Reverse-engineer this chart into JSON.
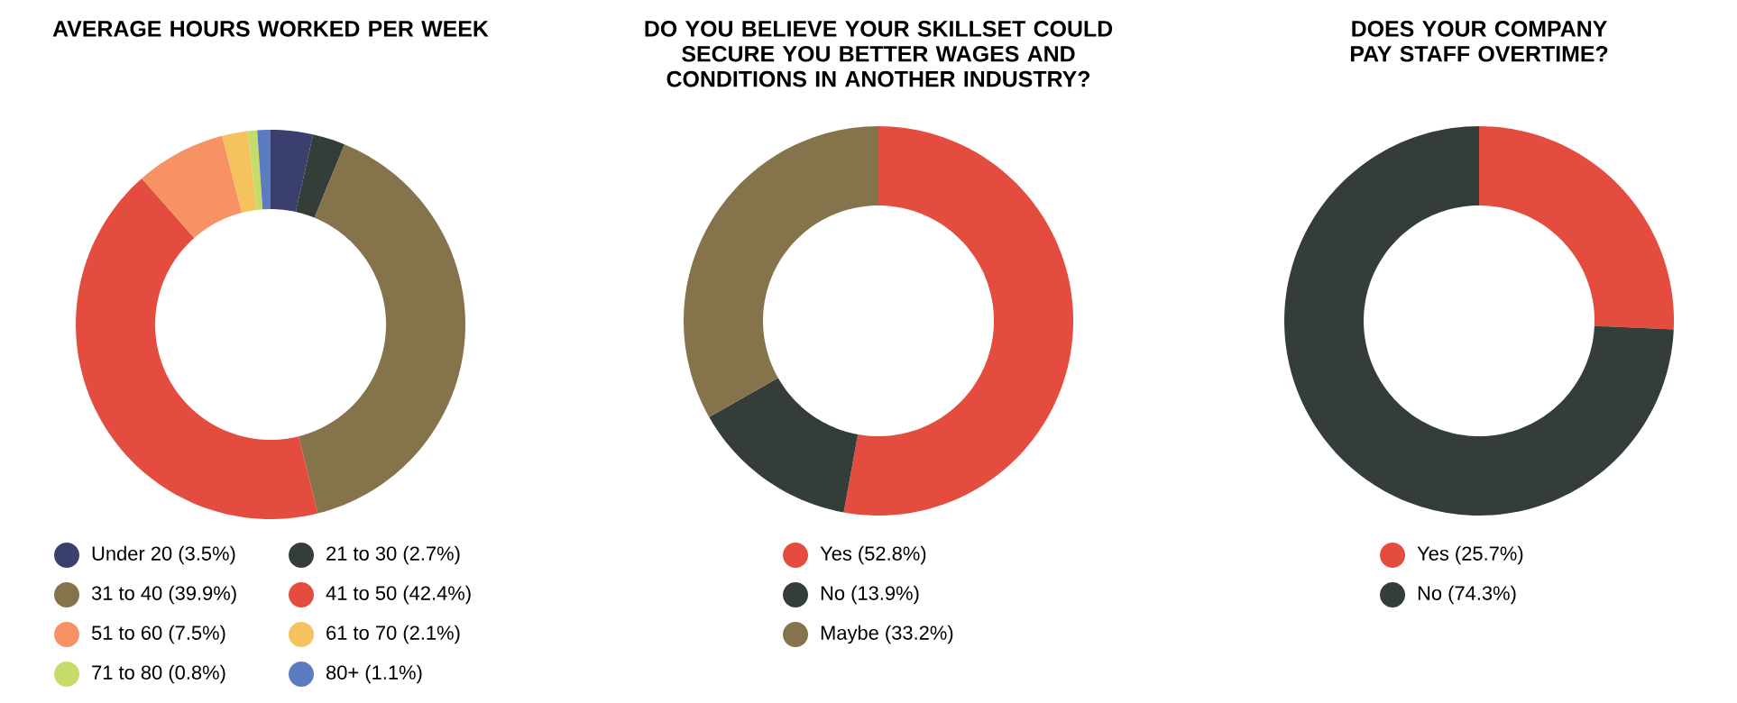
{
  "chart_data": [
    {
      "type": "donut",
      "title": "AVERAGE HOURS WORKED PER WEEK",
      "legend": "bottom",
      "categories": [
        "Under 20 (3.5%)",
        "21 to 30 (2.7%)",
        "31 to 40 (39.9%)",
        "41 to 50 (42.4%)",
        "51 to 60 (7.5%)",
        "61 to 70 (2.1%)",
        "71 to 80 (0.8%)",
        "80+ (1.1%)"
      ],
      "values": [
        3.5,
        2.7,
        39.9,
        42.4,
        7.5,
        2.1,
        0.8,
        1.1
      ],
      "colors": [
        "#3b3f6e",
        "#343d38",
        "#84734b",
        "#e44c40",
        "#f79265",
        "#f4c35e",
        "#c5dc6a",
        "#5b7cbf"
      ]
    },
    {
      "type": "donut",
      "title": "DO YOU BELIEVE YOUR SKILLSET COULD SECURE YOU BETTER WAGES AND CONDITIONS IN ANOTHER INDUSTRY?",
      "legend": "bottom",
      "categories": [
        "Yes (52.8%)",
        "No (13.9%)",
        "Maybe (33.2%)"
      ],
      "values": [
        52.8,
        13.9,
        33.2
      ],
      "colors": [
        "#e44c40",
        "#343d38",
        "#84734b"
      ]
    },
    {
      "type": "donut",
      "title": "DOES YOUR COMPANY PAY STAFF OVERTIME?",
      "legend": "bottom",
      "categories": [
        "Yes (25.7%)",
        "No (74.3%)"
      ],
      "values": [
        25.7,
        74.3
      ],
      "colors": [
        "#e44c40",
        "#343d38"
      ]
    }
  ]
}
